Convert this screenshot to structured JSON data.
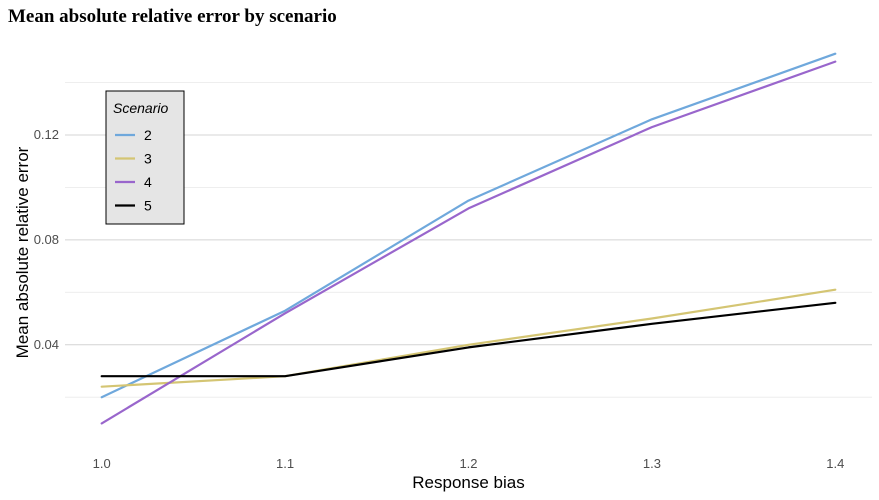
{
  "chart_data": {
    "type": "line",
    "title": "Mean absolute relative error by scenario",
    "xlabel": "Response bias",
    "ylabel": "Mean absolute relative error",
    "x": [
      1.0,
      1.1,
      1.2,
      1.3,
      1.4
    ],
    "x_ticks": [
      "1.0",
      "1.1",
      "1.2",
      "1.3",
      "1.4"
    ],
    "y_ticks": [
      "0.04",
      "0.08",
      "0.12"
    ],
    "y_tick_values": [
      0.04,
      0.08,
      0.12
    ],
    "xlim": [
      0.98,
      1.42
    ],
    "ylim": [
      0.001,
      0.157
    ],
    "grid": "horizontal",
    "legend": {
      "title": "Scenario",
      "placement": "top-left"
    },
    "series": [
      {
        "name": "2",
        "color": "#6fa8dc",
        "values": [
          0.02,
          0.053,
          0.095,
          0.126,
          0.151
        ]
      },
      {
        "name": "3",
        "color": "#d4c573",
        "values": [
          0.024,
          0.028,
          0.04,
          0.05,
          0.061
        ]
      },
      {
        "name": "4",
        "color": "#9966cc",
        "values": [
          0.01,
          0.052,
          0.092,
          0.123,
          0.148
        ]
      },
      {
        "name": "5",
        "color": "#000000",
        "values": [
          0.028,
          0.028,
          0.039,
          0.048,
          0.056
        ]
      }
    ]
  }
}
